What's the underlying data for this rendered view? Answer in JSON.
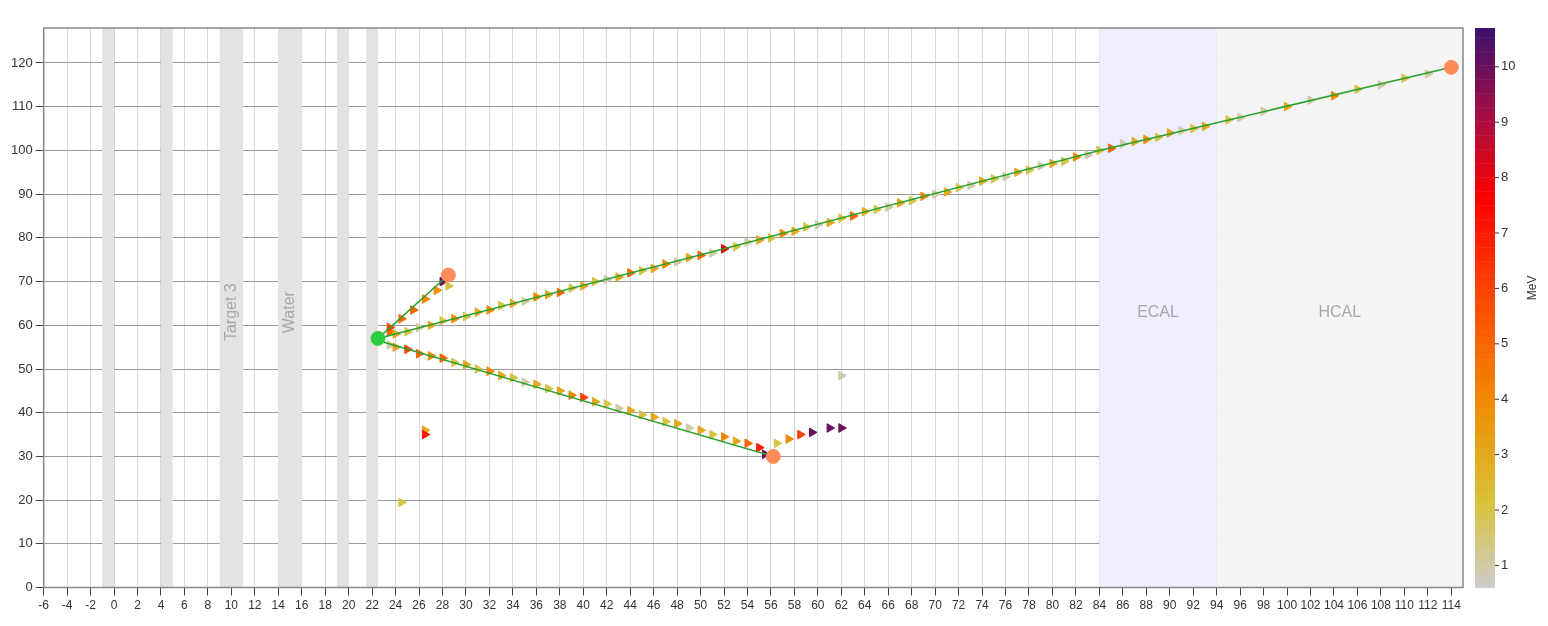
{
  "chart_data": {
    "type": "scatter",
    "clabel": "MeV",
    "clim": [
      0.6,
      10.7
    ],
    "cticks": [
      1,
      2,
      3,
      4,
      5,
      6,
      7,
      8,
      9,
      10
    ],
    "xlim": [
      -6,
      115
    ],
    "ylim": [
      0,
      128
    ],
    "xticks": [
      -6,
      -4,
      -2,
      0,
      2,
      4,
      6,
      8,
      10,
      12,
      14,
      16,
      18,
      20,
      22,
      24,
      26,
      28,
      30,
      32,
      34,
      36,
      38,
      40,
      42,
      44,
      46,
      48,
      50,
      52,
      54,
      56,
      58,
      60,
      62,
      64,
      66,
      68,
      70,
      72,
      74,
      76,
      78,
      80,
      82,
      84,
      86,
      88,
      90,
      92,
      94,
      96,
      98,
      100,
      102,
      104,
      106,
      108,
      110,
      112,
      114
    ],
    "yticks": [
      0,
      10,
      20,
      30,
      40,
      50,
      60,
      70,
      80,
      90,
      100,
      110,
      120
    ],
    "grid": true,
    "legend": false,
    "bands": [
      {
        "axis": "x",
        "from": -1,
        "to": 0,
        "color": "#e3e3e3"
      },
      {
        "axis": "x",
        "from": 4,
        "to": 5,
        "color": "#e3e3e3"
      },
      {
        "axis": "x",
        "from": 9,
        "to": 11,
        "label": "Target 3",
        "color": "#e3e3e3"
      },
      {
        "axis": "x",
        "from": 14,
        "to": 16,
        "label": "Water",
        "color": "#e3e3e3"
      },
      {
        "axis": "x",
        "from": 19,
        "to": 20,
        "color": "#e3e3e3"
      },
      {
        "axis": "x",
        "from": 21.5,
        "to": 22.5,
        "color": "#e3e3e3"
      },
      {
        "axis": "x",
        "from": 84,
        "to": 94,
        "label": "ECAL",
        "color": "#eeeefe"
      },
      {
        "axis": "x",
        "from": 94,
        "to": 115,
        "label": "HCAL",
        "color": "#f5f5f5"
      }
    ],
    "series": [
      {
        "marker": "triangle",
        "x": [
          23.5,
          24,
          25,
          26,
          27,
          28,
          29,
          30,
          31,
          32,
          33,
          34,
          35,
          36,
          37,
          38,
          39,
          40,
          41,
          42,
          43,
          44,
          45,
          46,
          47,
          48,
          49,
          50,
          51,
          52,
          53,
          54,
          55,
          56,
          57,
          58,
          59,
          60,
          61,
          62,
          63,
          64,
          65,
          66,
          67,
          68,
          69,
          70,
          71,
          72,
          73,
          74,
          75,
          76,
          77,
          78,
          79,
          80,
          81,
          82,
          83,
          84,
          85,
          86,
          87,
          88,
          89,
          90,
          91,
          92,
          93,
          95,
          96,
          98,
          100,
          102,
          104,
          106,
          108,
          110,
          112,
          23.5,
          24.5,
          25.5,
          26.5,
          27.5,
          28,
          28.5,
          23.5,
          24,
          25,
          26,
          27,
          28,
          29,
          30,
          31,
          32,
          33,
          34,
          35,
          36,
          37,
          38,
          39,
          40,
          41,
          42,
          43,
          44,
          45,
          46,
          47,
          48,
          49,
          50,
          51,
          52,
          53,
          54,
          55,
          55.5,
          56.5,
          57.5,
          58.5,
          59.5,
          61,
          62,
          62,
          26.5,
          26.5,
          24.5
        ],
        "values": [
          58.5,
          58,
          58.5,
          59.5,
          60,
          61,
          61.5,
          62,
          63,
          63.5,
          64.5,
          65,
          65.5,
          66.5,
          67,
          67.5,
          68.5,
          69,
          70,
          70.5,
          71,
          72,
          72.5,
          73,
          74,
          74.5,
          75.5,
          76,
          76.5,
          77.5,
          78,
          79,
          79.5,
          80,
          81,
          81.5,
          82.5,
          83,
          83.5,
          84.5,
          85,
          86,
          86.5,
          87,
          88,
          88.5,
          89.5,
          90,
          90.5,
          91.5,
          92,
          93,
          93.5,
          94,
          95,
          95.5,
          96.5,
          97,
          97.5,
          98.5,
          99,
          100,
          100.5,
          101.5,
          102,
          102.5,
          103,
          104,
          104.5,
          105,
          105.5,
          107,
          107.5,
          109,
          110,
          111.5,
          112.5,
          114,
          115,
          116.5,
          117.5,
          59.5,
          61.5,
          63.5,
          66,
          68,
          70,
          69,
          55.5,
          55,
          54.5,
          53.5,
          53,
          52.5,
          51.5,
          51,
          50,
          49.5,
          48.5,
          48,
          47,
          46.5,
          45.5,
          45,
          44,
          43.5,
          42.5,
          42,
          41,
          40.5,
          39.5,
          39,
          38,
          37.5,
          36.5,
          36,
          35,
          34.5,
          33.5,
          33,
          32,
          30.5,
          33,
          34,
          35,
          35.5,
          36.5,
          36.5,
          48.5,
          36,
          35,
          19.5
        ],
        "cvalues": [
          5,
          3,
          2,
          1,
          3,
          2,
          4,
          2,
          3,
          4,
          2,
          3,
          1,
          4,
          3,
          5,
          2,
          3,
          2,
          1,
          3,
          5,
          2,
          3,
          4,
          1,
          3,
          5,
          1,
          8,
          2,
          1,
          3,
          2,
          4,
          3,
          2,
          1,
          3,
          2,
          5,
          3,
          2,
          1,
          3,
          2,
          4,
          1,
          3,
          2,
          1,
          3,
          2,
          1,
          3,
          2,
          1,
          3,
          2,
          4,
          1,
          2,
          5,
          1,
          3,
          4,
          2,
          3,
          1,
          2,
          3,
          2,
          1,
          1,
          3,
          1,
          4,
          2,
          1,
          2,
          1,
          6,
          5,
          5,
          4,
          4,
          10,
          2,
          1,
          3,
          6,
          5,
          4,
          5,
          2,
          3,
          2,
          4,
          3,
          2,
          1,
          3,
          2,
          3,
          4,
          6,
          3,
          2,
          1,
          3,
          2,
          3,
          2,
          3,
          1,
          3,
          2,
          4,
          3,
          5,
          7,
          10,
          2,
          4,
          6,
          10,
          10,
          10,
          1,
          3,
          7,
          2
        ],
        "colors": [
          "#f76600",
          "#e3a81f",
          "#d6c447",
          "#d0caa7",
          "#e3a81f",
          "#d6c447",
          "#f08a00",
          "#d6c447",
          "#e3a81f",
          "#f08a00",
          "#d6c447",
          "#e3a81f",
          "#d0caa7",
          "#f08a00",
          "#e3a81f",
          "#f76600",
          "#d6c447",
          "#e3a81f",
          "#d6c447",
          "#d0caa7",
          "#e3a81f",
          "#f76600",
          "#d6c447",
          "#e3a81f",
          "#f08a00",
          "#d0caa7",
          "#e3a81f",
          "#f76600",
          "#d0caa7",
          "#e6030f",
          "#d6c447",
          "#d0caa7",
          "#e3a81f",
          "#d6c447",
          "#f08a00",
          "#e3a81f",
          "#d6c447",
          "#d0caa7",
          "#e3a81f",
          "#d6c447",
          "#f76600",
          "#e3a81f",
          "#d6c447",
          "#d0caa7",
          "#e3a81f",
          "#d6c447",
          "#f08a00",
          "#d0caa7",
          "#e3a81f",
          "#d6c447",
          "#d0caa7",
          "#e3a81f",
          "#d6c447",
          "#d0caa7",
          "#e3a81f",
          "#d6c447",
          "#d0caa7",
          "#e3a81f",
          "#d6c447",
          "#f08a00",
          "#d0caa7",
          "#d6c447",
          "#f76600",
          "#d0caa7",
          "#e3a81f",
          "#f08a00",
          "#d6c447",
          "#e3a81f",
          "#d0caa7",
          "#d6c447",
          "#e3a81f",
          "#d6c447",
          "#d0caa7",
          "#d0caa7",
          "#e3a81f",
          "#d0caa7",
          "#f08a00",
          "#d6c447",
          "#d0caa7",
          "#d6c447",
          "#d0caa7",
          "#fe4200",
          "#f76600",
          "#f76600",
          "#f08a00",
          "#f08a00",
          "#6a105c",
          "#d6c447",
          "#d0caa7",
          "#e3a81f",
          "#fe4200",
          "#f76600",
          "#f08a00",
          "#f76600",
          "#d6c447",
          "#e3a81f",
          "#d6c447",
          "#f08a00",
          "#e3a81f",
          "#d6c447",
          "#d0caa7",
          "#e3a81f",
          "#d6c447",
          "#e3a81f",
          "#f08a00",
          "#fe4200",
          "#e3a81f",
          "#d6c447",
          "#d0caa7",
          "#e3a81f",
          "#d6c447",
          "#e3a81f",
          "#d6c447",
          "#e3a81f",
          "#d0caa7",
          "#e3a81f",
          "#d6c447",
          "#f08a00",
          "#e3a81f",
          "#f76600",
          "#fc1b00",
          "#6a105c",
          "#d6c447",
          "#f08a00",
          "#fe4200",
          "#6a105c",
          "#6a105c",
          "#6a105c",
          "#d0caa7",
          "#e3a81f",
          "#fc1b00",
          "#d6c447"
        ]
      },
      {
        "type": "line",
        "color": "#2ca02c",
        "marker": "none",
        "x": [
          22.5,
          28.5
        ],
        "values": [
          57,
          71.5
        ]
      },
      {
        "type": "line",
        "color": "#2ca02c",
        "marker": "none",
        "x": [
          22.5,
          52,
          84,
          114
        ],
        "values": [
          57,
          77.5,
          100,
          119
        ]
      },
      {
        "type": "line",
        "color": "#2ca02c",
        "marker": "none",
        "x": [
          22.5,
          56.2
        ],
        "values": [
          56.5,
          30
        ]
      },
      {
        "marker": "circle",
        "color": "#2ecc40",
        "x": [
          22.5
        ],
        "values": [
          57
        ]
      },
      {
        "marker": "circle",
        "color": "#ff8c5a",
        "x": [
          28.5,
          56.2,
          114
        ],
        "values": [
          71.5,
          30,
          119
        ]
      }
    ]
  }
}
